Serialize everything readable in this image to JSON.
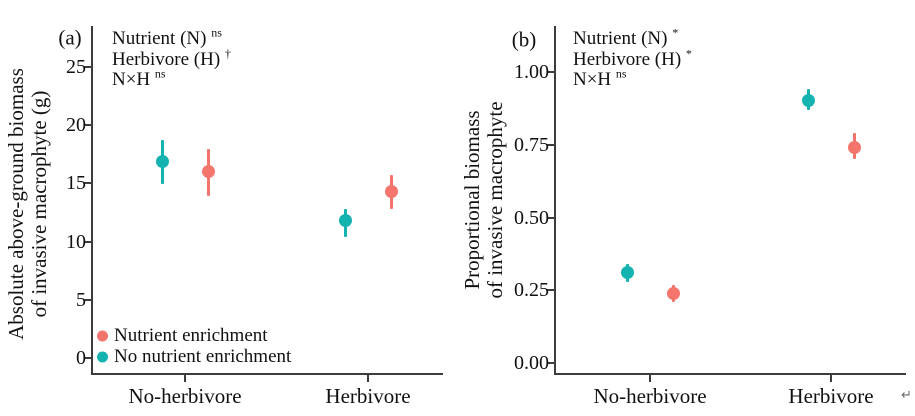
{
  "figure": {
    "cursor_mark": "↵"
  },
  "chart_data": [
    {
      "type": "scatter",
      "panel_label": "(a)",
      "ylabel_lines": [
        "Absolute above-ground biomass",
        "of invasive macrophyte (g)"
      ],
      "categories": [
        "No-herbivore",
        "Herbivore"
      ],
      "ylim": [
        0,
        27.5
      ],
      "grid": false,
      "yticks": [
        {
          "value": 0,
          "label": "0"
        },
        {
          "value": 5,
          "label": "5"
        },
        {
          "value": 10,
          "label": "10"
        },
        {
          "value": 15,
          "label": "15"
        },
        {
          "value": 20,
          "label": "20"
        },
        {
          "value": 25,
          "label": "25"
        }
      ],
      "annotations": [
        {
          "text": "Nutrient (N)",
          "sup": "ns"
        },
        {
          "text": "Herbivore (H)",
          "sup": "†"
        },
        {
          "text": "N×H",
          "sup": "ns"
        }
      ],
      "series": [
        {
          "name": "No nutrient enrichment",
          "color": "#14B3AF",
          "points": [
            {
              "category": "No-herbivore",
              "y": 16.9,
              "ci_low": 14.9,
              "ci_high": 18.7
            },
            {
              "category": "Herbivore",
              "y": 11.8,
              "ci_low": 10.4,
              "ci_high": 12.8
            }
          ]
        },
        {
          "name": "Nutrient enrichment",
          "color": "#F4756B",
          "points": [
            {
              "category": "No-herbivore",
              "y": 16.0,
              "ci_low": 13.9,
              "ci_high": 17.9
            },
            {
              "category": "Herbivore",
              "y": 14.3,
              "ci_low": 12.8,
              "ci_high": 15.7
            }
          ]
        }
      ],
      "legend": [
        {
          "label": "Nutrient enrichment",
          "color": "#F4756B"
        },
        {
          "label": "No nutrient enrichment",
          "color": "#14B3AF"
        }
      ],
      "legend_position": "bottom-left-inside"
    },
    {
      "type": "scatter",
      "panel_label": "(b)",
      "ylabel_lines": [
        "Proportional biomass",
        "of invasive macrophyte"
      ],
      "categories": [
        "No-herbivore",
        "Herbivore"
      ],
      "ylim": [
        0,
        1.08
      ],
      "grid": false,
      "yticks": [
        {
          "value": 0,
          "label": "0.00"
        },
        {
          "value": 0.25,
          "label": "0.25"
        },
        {
          "value": 0.5,
          "label": "0.50"
        },
        {
          "value": 0.75,
          "label": "0.75"
        },
        {
          "value": 1.0,
          "label": "1.00"
        }
      ],
      "annotations": [
        {
          "text": "Nutrient (N)",
          "sup": "*"
        },
        {
          "text": "Herbivore (H)",
          "sup": "*"
        },
        {
          "text": "N×H",
          "sup": "ns"
        }
      ],
      "series": [
        {
          "name": "No nutrient enrichment",
          "color": "#14B3AF",
          "points": [
            {
              "category": "No-herbivore",
              "y": 0.31,
              "ci_low": 0.28,
              "ci_high": 0.34
            },
            {
              "category": "Herbivore",
              "y": 0.9,
              "ci_low": 0.87,
              "ci_high": 0.94
            }
          ]
        },
        {
          "name": "Nutrient enrichment",
          "color": "#F4756B",
          "points": [
            {
              "category": "No-herbivore",
              "y": 0.24,
              "ci_low": 0.21,
              "ci_high": 0.27
            },
            {
              "category": "Herbivore",
              "y": 0.74,
              "ci_low": 0.7,
              "ci_high": 0.79
            }
          ]
        }
      ],
      "legend": [],
      "legend_position": "none"
    }
  ]
}
